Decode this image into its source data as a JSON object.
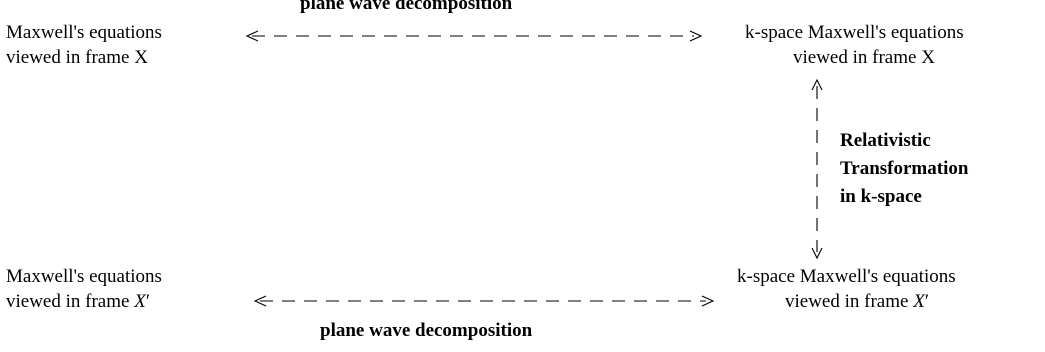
{
  "top_left": {
    "line1": "Maxwell's equations",
    "line2": "viewed in frame X"
  },
  "top_right": {
    "line1": "k-space Maxwell's equations",
    "line2": "viewed in frame X"
  },
  "bottom_left": {
    "line1": "Maxwell's equations",
    "line2_prefix": "viewed in frame",
    "line2_var": "X",
    "line2_prime": "′"
  },
  "bottom_right": {
    "line1": "k-space Maxwell's equations",
    "line2_prefix": "viewed in frame",
    "line2_var": "X",
    "line2_prime": "′"
  },
  "top_arrow_label": "plane wave decomposition",
  "bottom_arrow_label": "plane wave decomposition",
  "right_arrow_label": {
    "line1": "Relativistic",
    "line2": "Transformation",
    "line3": "in k-space"
  }
}
